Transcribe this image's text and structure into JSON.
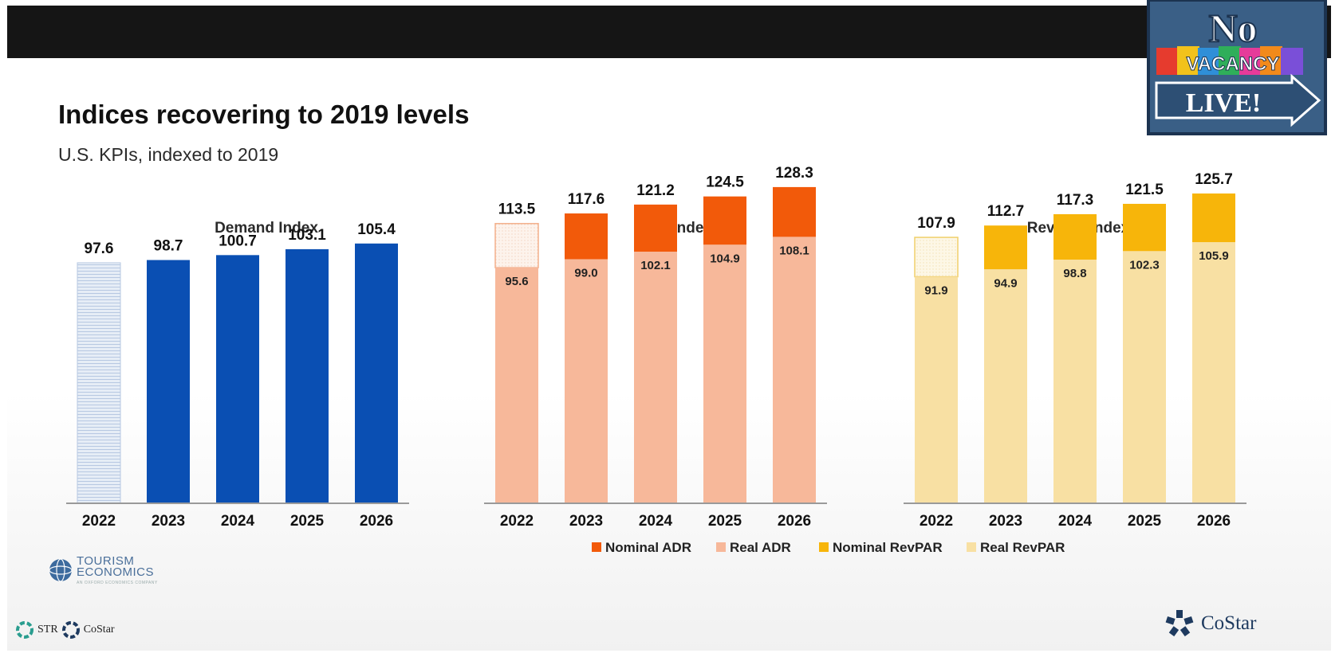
{
  "header": {
    "title": "Indices recovering to 2019 levels",
    "subtitle": "U.S. KPIs, indexed to 2019"
  },
  "badge": {
    "line1": "No",
    "line2": "VACANCY",
    "line3": "LIVE!"
  },
  "logos": {
    "tourism": "TOURISM",
    "economics": "ECONOMICS",
    "tourism_sub": "AN OXFORD ECONOMICS COMPANY",
    "str": "STR",
    "costar_small": "CoStar",
    "costar": "CoStar"
  },
  "colors": {
    "demand": "#0a4fb3",
    "demand_2022": "#dde6f2",
    "nominal_adr": "#f25a0a",
    "real_adr": "#f7b89a",
    "nominal_revpar": "#f7b50a",
    "real_revpar": "#f8e0a3",
    "pale_2022": "#fdf0e6"
  },
  "chart_data": [
    {
      "type": "bar",
      "title": "Demand Index",
      "categories": [
        "2022",
        "2023",
        "2024",
        "2025",
        "2026"
      ],
      "values": [
        97.6,
        98.7,
        100.7,
        103.1,
        105.4
      ]
    },
    {
      "type": "bar",
      "stacked": true,
      "title": "ADR Index",
      "categories": [
        "2022",
        "2023",
        "2024",
        "2025",
        "2026"
      ],
      "series": [
        {
          "name": "Real ADR",
          "values": [
            95.6,
            99.0,
            102.1,
            104.9,
            108.1
          ]
        },
        {
          "name": "Nominal ADR",
          "values": [
            113.5,
            117.6,
            121.2,
            124.5,
            128.3
          ]
        }
      ]
    },
    {
      "type": "bar",
      "stacked": true,
      "title": "RevPAR Index",
      "categories": [
        "2022",
        "2023",
        "2024",
        "2025",
        "2026"
      ],
      "series": [
        {
          "name": "Real RevPAR",
          "values": [
            91.9,
            94.9,
            98.8,
            102.3,
            105.9
          ]
        },
        {
          "name": "Nominal RevPAR",
          "values": [
            107.9,
            112.7,
            117.3,
            121.5,
            125.7
          ]
        }
      ]
    }
  ],
  "legend": {
    "position": "bottom",
    "items": [
      {
        "label": "Nominal ADR",
        "color": "#f25a0a"
      },
      {
        "label": "Real ADR",
        "color": "#f7b89a"
      },
      {
        "label": "Nominal RevPAR",
        "color": "#f7b50a"
      },
      {
        "label": "Real RevPAR",
        "color": "#f8e0a3"
      }
    ]
  }
}
